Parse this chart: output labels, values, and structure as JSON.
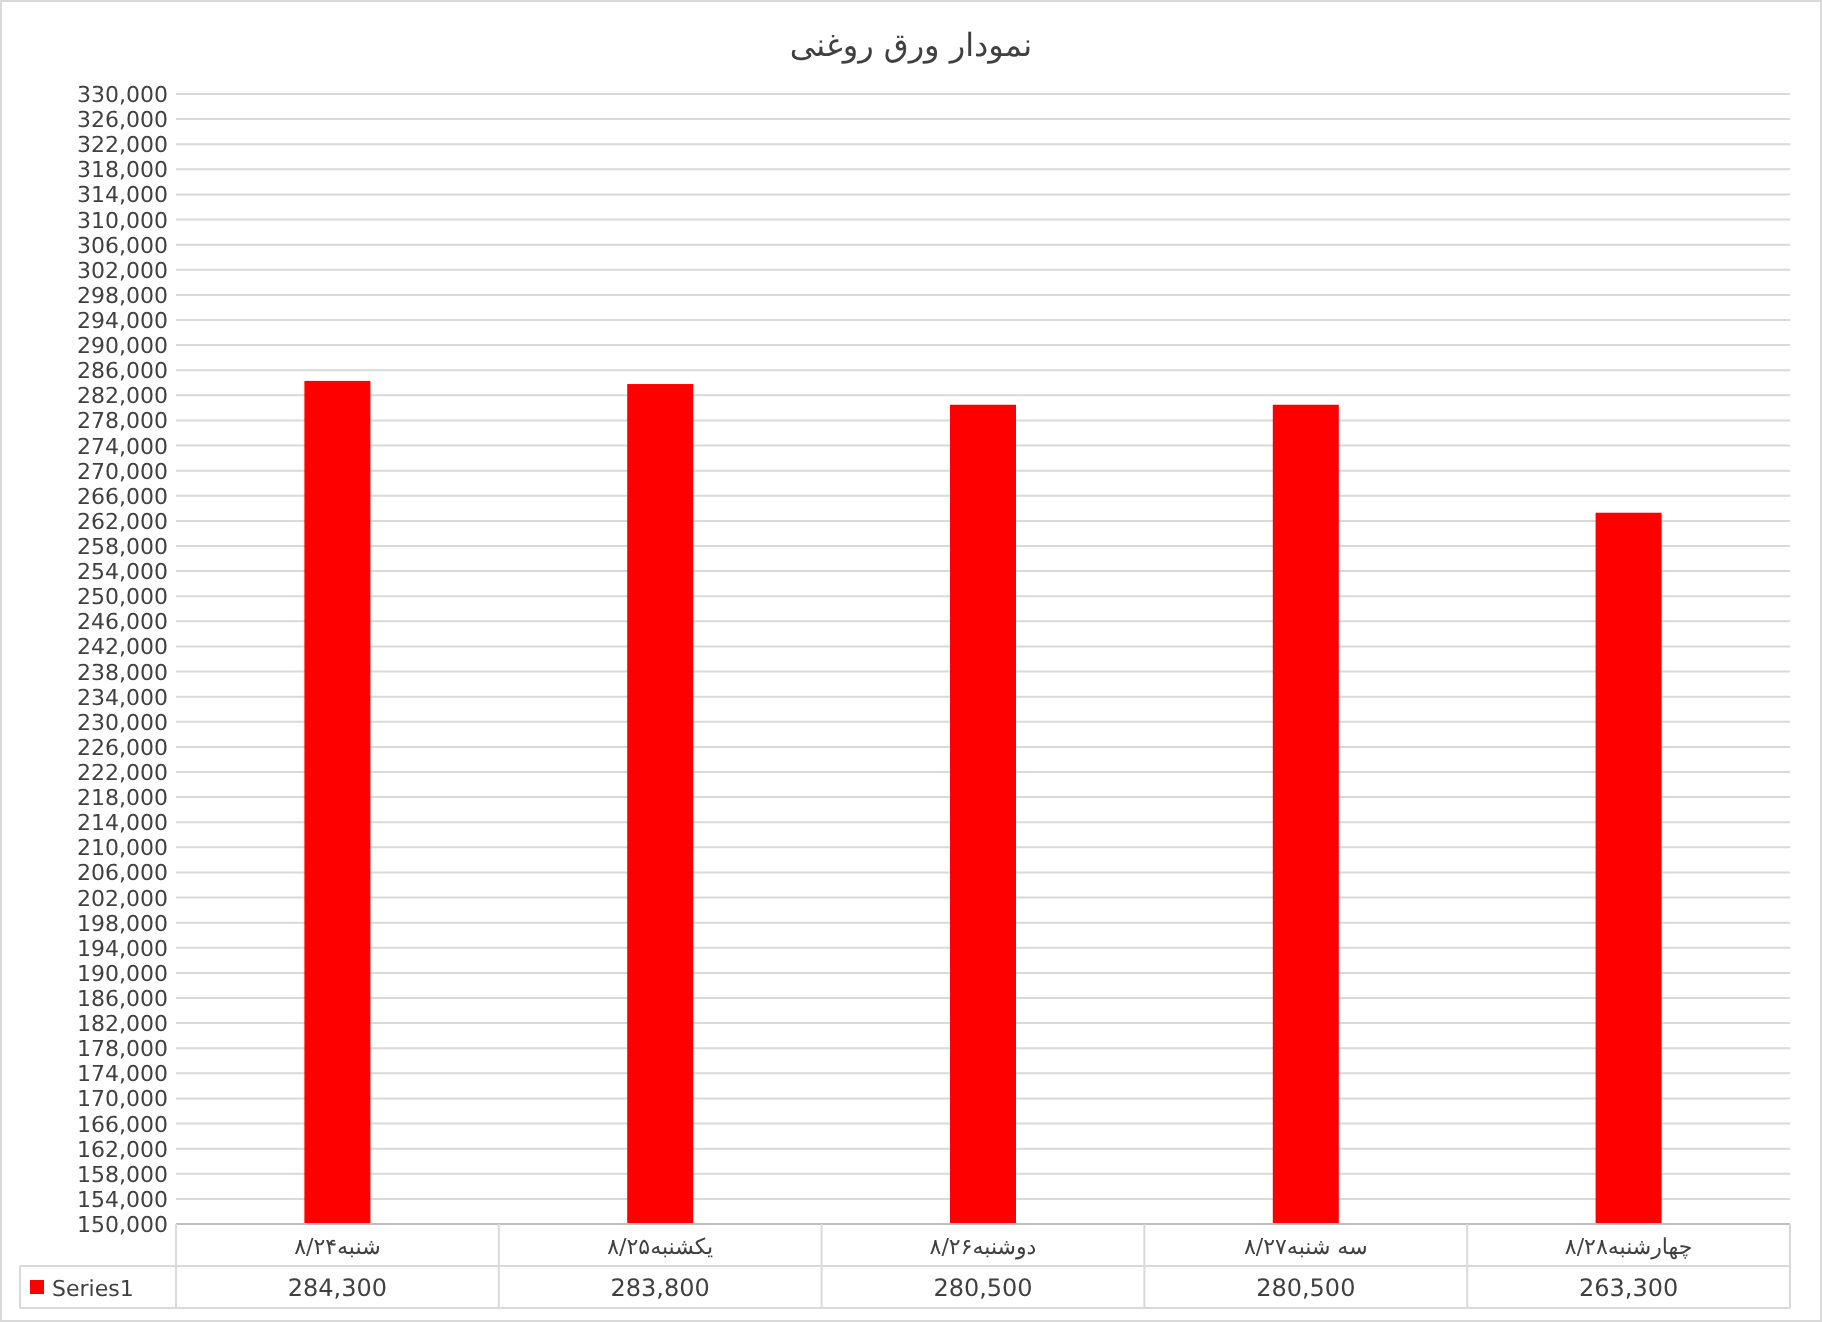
{
  "chart_data": {
    "type": "bar",
    "title": "نمودار ورق روغنی",
    "categories": [
      "شنبه۸/۲۴",
      "یکشنبه۸/۲۵",
      "دوشنبه۸/۲۶",
      "سه شنبه۸/۲۷",
      "چهارشنبه۸/۲۸"
    ],
    "series": [
      {
        "name": "Series1",
        "color": "#ff0000",
        "values": [
          284300,
          283800,
          280500,
          280500,
          263300
        ],
        "value_labels": [
          "284,300",
          "283,800",
          "280,500",
          "280,500",
          "263,300"
        ]
      }
    ],
    "ylim": [
      150000,
      330000
    ],
    "yticks": [
      {
        "value": 150000,
        "label": "150,000"
      },
      {
        "value": 154000,
        "label": "154,000"
      },
      {
        "value": 158000,
        "label": "158,000"
      },
      {
        "value": 162000,
        "label": "162,000"
      },
      {
        "value": 166000,
        "label": "166,000"
      },
      {
        "value": 170000,
        "label": "170,000"
      },
      {
        "value": 174000,
        "label": "174,000"
      },
      {
        "value": 178000,
        "label": "178,000"
      },
      {
        "value": 182000,
        "label": "182,000"
      },
      {
        "value": 186000,
        "label": "186,000"
      },
      {
        "value": 190000,
        "label": "190,000"
      },
      {
        "value": 194000,
        "label": "194,000"
      },
      {
        "value": 198000,
        "label": "198,000"
      },
      {
        "value": 202000,
        "label": "202,000"
      },
      {
        "value": 206000,
        "label": "206,000"
      },
      {
        "value": 210000,
        "label": "210,000"
      },
      {
        "value": 214000,
        "label": "214,000"
      },
      {
        "value": 218000,
        "label": "218,000"
      },
      {
        "value": 222000,
        "label": "222,000"
      },
      {
        "value": 226000,
        "label": "226,000"
      },
      {
        "value": 230000,
        "label": "230,000"
      },
      {
        "value": 234000,
        "label": "234,000"
      },
      {
        "value": 238000,
        "label": "238,000"
      },
      {
        "value": 242000,
        "label": "242,000"
      },
      {
        "value": 246000,
        "label": "246,000"
      },
      {
        "value": 250000,
        "label": "250,000"
      },
      {
        "value": 254000,
        "label": "254,000"
      },
      {
        "value": 258000,
        "label": "258,000"
      },
      {
        "value": 262000,
        "label": "262,000"
      },
      {
        "value": 266000,
        "label": "266,000"
      },
      {
        "value": 270000,
        "label": "270,000"
      },
      {
        "value": 274000,
        "label": "274,000"
      },
      {
        "value": 278000,
        "label": "278,000"
      },
      {
        "value": 282000,
        "label": "282,000"
      },
      {
        "value": 286000,
        "label": "286,000"
      },
      {
        "value": 290000,
        "label": "290,000"
      },
      {
        "value": 294000,
        "label": "294,000"
      },
      {
        "value": 298000,
        "label": "298,000"
      },
      {
        "value": 302000,
        "label": "302,000"
      },
      {
        "value": 306000,
        "label": "306,000"
      },
      {
        "value": 310000,
        "label": "310,000"
      },
      {
        "value": 314000,
        "label": "314,000"
      },
      {
        "value": 318000,
        "label": "318,000"
      },
      {
        "value": 322000,
        "label": "322,000"
      },
      {
        "value": 326000,
        "label": "326,000"
      },
      {
        "value": 330000,
        "label": "330,000"
      }
    ],
    "grid": "y",
    "legend": "bottom left"
  }
}
